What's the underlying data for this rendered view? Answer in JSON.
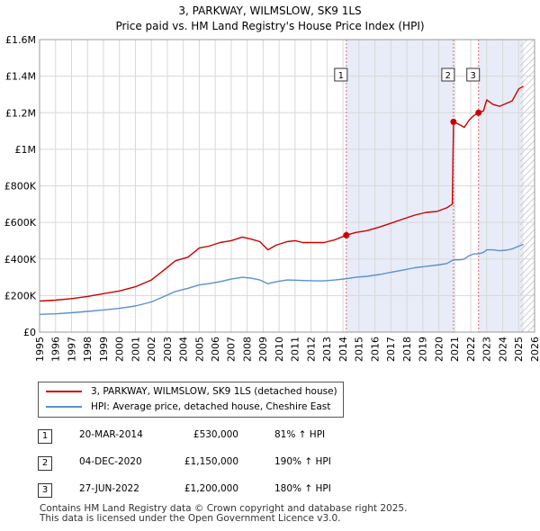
{
  "chart_data": {
    "type": "line",
    "title": "3, PARKWAY, WILMSLOW, SK9 1LS",
    "subtitle": "Price paid vs. HM Land Registry's House Price Index (HPI)",
    "xlim": [
      1995,
      2026
    ],
    "ylim": [
      0,
      1600000
    ],
    "x_ticks": [
      1995,
      1996,
      1997,
      1998,
      1999,
      2000,
      2001,
      2002,
      2003,
      2004,
      2005,
      2006,
      2007,
      2008,
      2009,
      2010,
      2011,
      2012,
      2013,
      2014,
      2015,
      2016,
      2017,
      2018,
      2019,
      2020,
      2021,
      2022,
      2023,
      2024,
      2025,
      2026
    ],
    "y_ticks": [
      {
        "value": 0,
        "label": "£0"
      },
      {
        "value": 200000,
        "label": "£200K"
      },
      {
        "value": 400000,
        "label": "£400K"
      },
      {
        "value": 600000,
        "label": "£600K"
      },
      {
        "value": 800000,
        "label": "£800K"
      },
      {
        "value": 1000000,
        "label": "£1M"
      },
      {
        "value": 1200000,
        "label": "£1.2M"
      },
      {
        "value": 1400000,
        "label": "£1.4M"
      },
      {
        "value": 1600000,
        "label": "£1.6M"
      }
    ],
    "grid": true,
    "shaded_ranges": [
      [
        2014.21,
        2020.92
      ],
      [
        2022.49,
        2025.3
      ]
    ],
    "hatched_from": 2025.1,
    "series": [
      {
        "name": "3, PARKWAY, WILMSLOW, SK9 1LS (detached house)",
        "color": "#cc0000",
        "points": [
          [
            1995.0,
            170000
          ],
          [
            1996.0,
            175000
          ],
          [
            1997.0,
            183000
          ],
          [
            1998.0,
            195000
          ],
          [
            1999.0,
            210000
          ],
          [
            2000.0,
            225000
          ],
          [
            2001.0,
            248000
          ],
          [
            2002.0,
            285000
          ],
          [
            2002.8,
            340000
          ],
          [
            2003.5,
            390000
          ],
          [
            2004.3,
            410000
          ],
          [
            2005.0,
            460000
          ],
          [
            2005.6,
            470000
          ],
          [
            2006.3,
            490000
          ],
          [
            2007.0,
            500000
          ],
          [
            2007.7,
            520000
          ],
          [
            2008.2,
            510000
          ],
          [
            2008.8,
            495000
          ],
          [
            2009.3,
            450000
          ],
          [
            2009.8,
            475000
          ],
          [
            2010.5,
            495000
          ],
          [
            2011.0,
            500000
          ],
          [
            2011.5,
            490000
          ],
          [
            2012.3,
            490000
          ],
          [
            2012.8,
            490000
          ],
          [
            2013.5,
            505000
          ],
          [
            2014.21,
            530000
          ],
          [
            2014.8,
            545000
          ],
          [
            2015.5,
            555000
          ],
          [
            2016.3,
            575000
          ],
          [
            2017.0,
            595000
          ],
          [
            2017.8,
            620000
          ],
          [
            2018.5,
            640000
          ],
          [
            2019.2,
            655000
          ],
          [
            2019.9,
            660000
          ],
          [
            2020.5,
            680000
          ],
          [
            2020.85,
            700000
          ],
          [
            2020.92,
            1150000
          ],
          [
            2021.3,
            1135000
          ],
          [
            2021.6,
            1120000
          ],
          [
            2021.9,
            1160000
          ],
          [
            2022.2,
            1185000
          ],
          [
            2022.49,
            1200000
          ],
          [
            2022.8,
            1210000
          ],
          [
            2023.0,
            1270000
          ],
          [
            2023.4,
            1245000
          ],
          [
            2023.8,
            1235000
          ],
          [
            2024.2,
            1250000
          ],
          [
            2024.6,
            1265000
          ],
          [
            2025.0,
            1330000
          ],
          [
            2025.3,
            1345000
          ]
        ]
      },
      {
        "name": "HPI: Average price, detached house, Cheshire East",
        "color": "#5b8fd0",
        "points": [
          [
            1995.0,
            97000
          ],
          [
            1996.0,
            100000
          ],
          [
            1997.0,
            106000
          ],
          [
            1998.0,
            113000
          ],
          [
            1999.0,
            121000
          ],
          [
            2000.0,
            130000
          ],
          [
            2001.0,
            143000
          ],
          [
            2002.0,
            165000
          ],
          [
            2002.8,
            195000
          ],
          [
            2003.5,
            222000
          ],
          [
            2004.3,
            240000
          ],
          [
            2005.0,
            258000
          ],
          [
            2005.6,
            265000
          ],
          [
            2006.3,
            276000
          ],
          [
            2007.0,
            290000
          ],
          [
            2007.7,
            300000
          ],
          [
            2008.2,
            296000
          ],
          [
            2008.8,
            285000
          ],
          [
            2009.3,
            265000
          ],
          [
            2009.8,
            275000
          ],
          [
            2010.5,
            285000
          ],
          [
            2011.0,
            284000
          ],
          [
            2011.5,
            282000
          ],
          [
            2012.3,
            280000
          ],
          [
            2012.8,
            280000
          ],
          [
            2013.5,
            285000
          ],
          [
            2014.21,
            292000
          ],
          [
            2014.8,
            300000
          ],
          [
            2015.5,
            305000
          ],
          [
            2016.3,
            315000
          ],
          [
            2017.0,
            327000
          ],
          [
            2017.8,
            340000
          ],
          [
            2018.5,
            352000
          ],
          [
            2019.2,
            360000
          ],
          [
            2019.9,
            367000
          ],
          [
            2020.5,
            375000
          ],
          [
            2020.92,
            396000
          ],
          [
            2021.3,
            395000
          ],
          [
            2021.6,
            400000
          ],
          [
            2021.9,
            418000
          ],
          [
            2022.2,
            428000
          ],
          [
            2022.49,
            428000
          ],
          [
            2022.8,
            436000
          ],
          [
            2023.0,
            450000
          ],
          [
            2023.4,
            450000
          ],
          [
            2023.8,
            445000
          ],
          [
            2024.2,
            448000
          ],
          [
            2024.6,
            455000
          ],
          [
            2025.0,
            470000
          ],
          [
            2025.3,
            480000
          ]
        ]
      }
    ],
    "sale_markers": [
      {
        "label": "1",
        "x": 2014.21,
        "y": 530000
      },
      {
        "label": "2",
        "x": 2020.92,
        "y": 1150000
      },
      {
        "label": "3",
        "x": 2022.49,
        "y": 1200000
      }
    ]
  },
  "legend": {
    "property_label": "3, PARKWAY, WILMSLOW, SK9 1LS (detached house)",
    "hpi_label": "HPI: Average price, detached house, Cheshire East",
    "property_color": "#cc0000",
    "hpi_color": "#5b8fd0"
  },
  "sales": [
    {
      "num": "1",
      "date": "20-MAR-2014",
      "price": "£530,000",
      "hpi": "81% ↑ HPI"
    },
    {
      "num": "2",
      "date": "04-DEC-2020",
      "price": "£1,150,000",
      "hpi": "190% ↑ HPI"
    },
    {
      "num": "3",
      "date": "27-JUN-2022",
      "price": "£1,200,000",
      "hpi": "180% ↑ HPI"
    }
  ],
  "footer": {
    "line1": "Contains HM Land Registry data © Crown copyright and database right 2025.",
    "line2": "This data is licensed under the Open Government Licence v3.0."
  }
}
